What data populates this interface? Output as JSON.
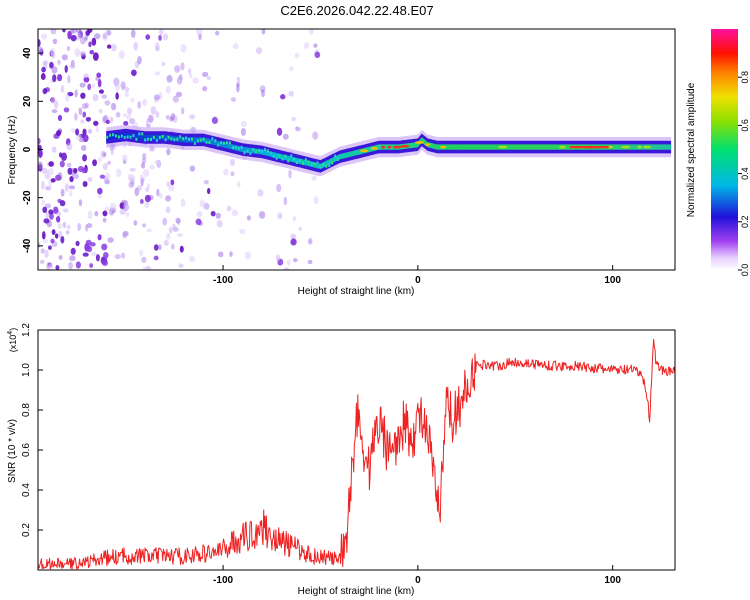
{
  "title": "C2E6.2026.042.22.48.E07",
  "colors": {
    "snr_line": "#ee2222",
    "axis": "#000000",
    "ridge_core": "#2bd06a"
  },
  "chart_data": [
    {
      "type": "heatmap",
      "name": "spectrogram",
      "xlabel": "Height of straight line (km)",
      "ylabel": "Frequency (Hz)",
      "xlim": [
        -195,
        132
      ],
      "ylim": [
        -50,
        50
      ],
      "x_ticks": [
        -100,
        0,
        100
      ],
      "x_tick_labels": [
        "-100",
        "0",
        "100"
      ],
      "y_ticks": [
        -40,
        -20,
        0,
        20,
        40
      ],
      "y_tick_labels": [
        "-40",
        "-20",
        "0",
        "20",
        "40"
      ],
      "ridge_frequency": {
        "x": [
          -160,
          -150,
          -140,
          -130,
          -120,
          -110,
          -100,
          -90,
          -80,
          -70,
          -60,
          -50,
          -45,
          -40,
          -35,
          -30,
          -25,
          -20,
          -10,
          0,
          2,
          5,
          10,
          20,
          30,
          40,
          50,
          60,
          70,
          80,
          90,
          100,
          110,
          120,
          125,
          130
        ],
        "y": [
          5,
          6,
          5,
          5,
          4,
          4,
          2,
          0,
          -1,
          -3,
          -5,
          -7,
          -5,
          -3,
          -2,
          -1,
          0,
          1,
          1,
          2,
          4,
          2,
          1,
          1,
          1,
          1,
          1,
          1,
          1,
          1,
          1,
          1,
          1,
          1,
          1,
          1
        ]
      },
      "ridge_amplitude": {
        "x": [
          -160,
          -140,
          -120,
          -100,
          -80,
          -60,
          -50,
          -40,
          -30,
          -20,
          -10,
          0,
          10,
          20,
          40,
          60,
          80,
          90,
          100,
          110,
          120,
          130
        ],
        "y": [
          0.25,
          0.3,
          0.35,
          0.4,
          0.45,
          0.45,
          0.4,
          0.5,
          0.7,
          0.85,
          0.9,
          0.8,
          0.8,
          0.6,
          0.55,
          0.6,
          0.7,
          0.85,
          0.65,
          0.55,
          0.7,
          0.5
        ]
      },
      "colorbar": {
        "label": "Normalized spectral amplitude",
        "range": [
          0,
          1
        ],
        "ticks": [
          0.0,
          0.2,
          0.4,
          0.6,
          0.8
        ],
        "tick_labels": [
          "0.0",
          "0.2",
          "0.4",
          "0.6",
          "0.8"
        ]
      }
    },
    {
      "type": "line",
      "name": "snr",
      "xlabel": "Height of straight line (km)",
      "ylabel": "SNR (10 * v/v)",
      "scale_label": "(x10",
      "scale_exponent": "4",
      "scale_close": ")",
      "xlim": [
        -195,
        132
      ],
      "ylim": [
        0,
        1.2
      ],
      "x_ticks": [
        -100,
        0,
        100
      ],
      "x_tick_labels": [
        "-100",
        "0",
        "100"
      ],
      "y_ticks": [
        0.2,
        0.4,
        0.6,
        0.8,
        1.0,
        1.2
      ],
      "y_tick_labels": [
        "0.2",
        "0.4",
        "0.6",
        "0.8",
        "1.0",
        "1.2"
      ],
      "series": [
        {
          "name": "SNR",
          "x": [
            -195,
            -180,
            -170,
            -160,
            -150,
            -140,
            -130,
            -120,
            -110,
            -100,
            -95,
            -90,
            -85,
            -80,
            -75,
            -70,
            -65,
            -60,
            -55,
            -50,
            -45,
            -40,
            -37,
            -34,
            -31,
            -28,
            -25,
            -22,
            -19,
            -16,
            -13,
            -10,
            -7,
            -4,
            -1,
            2,
            5,
            8,
            10,
            11,
            12,
            15,
            18,
            21,
            24,
            27,
            30,
            35,
            40,
            45,
            50,
            60,
            70,
            80,
            90,
            100,
            110,
            115,
            118,
            119,
            120,
            121,
            122,
            125,
            132
          ],
          "y": [
            0.03,
            0.03,
            0.04,
            0.06,
            0.07,
            0.07,
            0.07,
            0.07,
            0.08,
            0.1,
            0.14,
            0.16,
            0.18,
            0.22,
            0.17,
            0.14,
            0.12,
            0.1,
            0.07,
            0.07,
            0.06,
            0.05,
            0.1,
            0.5,
            0.8,
            0.6,
            0.5,
            0.7,
            0.75,
            0.6,
            0.7,
            0.6,
            0.75,
            0.65,
            0.7,
            0.8,
            0.65,
            0.5,
            0.35,
            0.25,
            0.4,
            0.85,
            0.75,
            0.82,
            0.88,
            0.97,
            1.02,
            1.03,
            1.02,
            1.03,
            1.04,
            1.03,
            1.02,
            1.02,
            1.01,
            1.0,
            1.0,
            0.98,
            0.85,
            0.75,
            0.95,
            1.18,
            1.05,
            1.0,
            0.99
          ]
        }
      ]
    }
  ]
}
